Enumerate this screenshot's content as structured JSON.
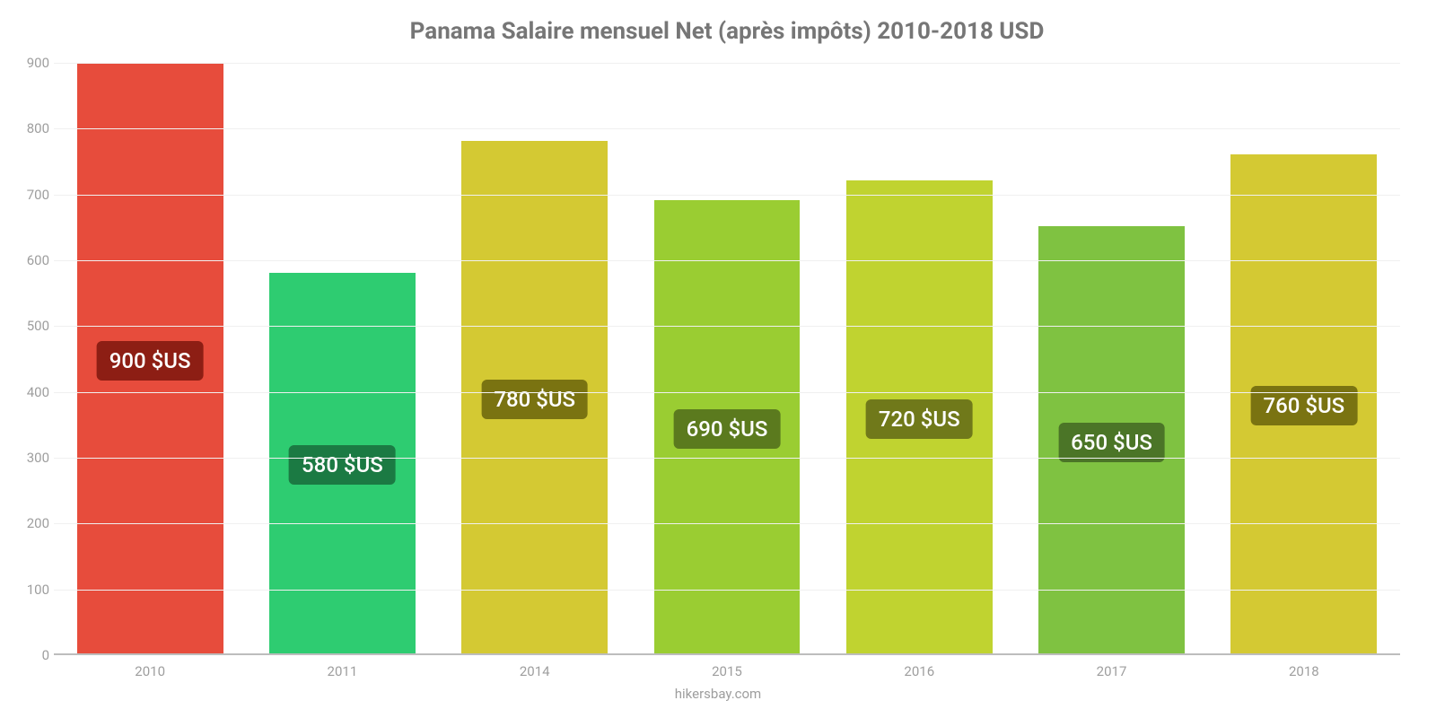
{
  "chart": {
    "type": "bar",
    "title": "Panama Salaire mensuel Net (après impôts) 2010-2018 USD",
    "title_color": "#767676",
    "title_fontsize": 26,
    "background_color": "#ffffff",
    "grid_color": "#f0f0f0",
    "axis_color": "#bdbdbd",
    "tick_label_color": "#9e9e9e",
    "tick_fontsize": 15,
    "value_label_fontsize": 24,
    "value_label_color": "#ffffff",
    "bar_width_pct": 76,
    "ylim": [
      0,
      900
    ],
    "ytick_step": 100,
    "yticks": [
      0,
      100,
      200,
      300,
      400,
      500,
      600,
      700,
      800,
      900
    ],
    "categories": [
      "2010",
      "2011",
      "2014",
      "2015",
      "2016",
      "2017",
      "2018"
    ],
    "values": [
      900,
      580,
      780,
      690,
      720,
      650,
      760
    ],
    "value_labels": [
      "900 $US",
      "580 $US",
      "780 $US",
      "690 $US",
      "720 $US",
      "650 $US",
      "760 $US"
    ],
    "bar_colors": [
      "#e74c3c",
      "#2ecc71",
      "#d4c933",
      "#9acd32",
      "#c0d330",
      "#7fc241",
      "#d4c933"
    ],
    "badge_colors": [
      "#8d1e14",
      "#1b7a43",
      "#7a7311",
      "#5b7a1e",
      "#70791a",
      "#4b7527",
      "#7a7311"
    ],
    "attribution": "hikersbay.com"
  }
}
